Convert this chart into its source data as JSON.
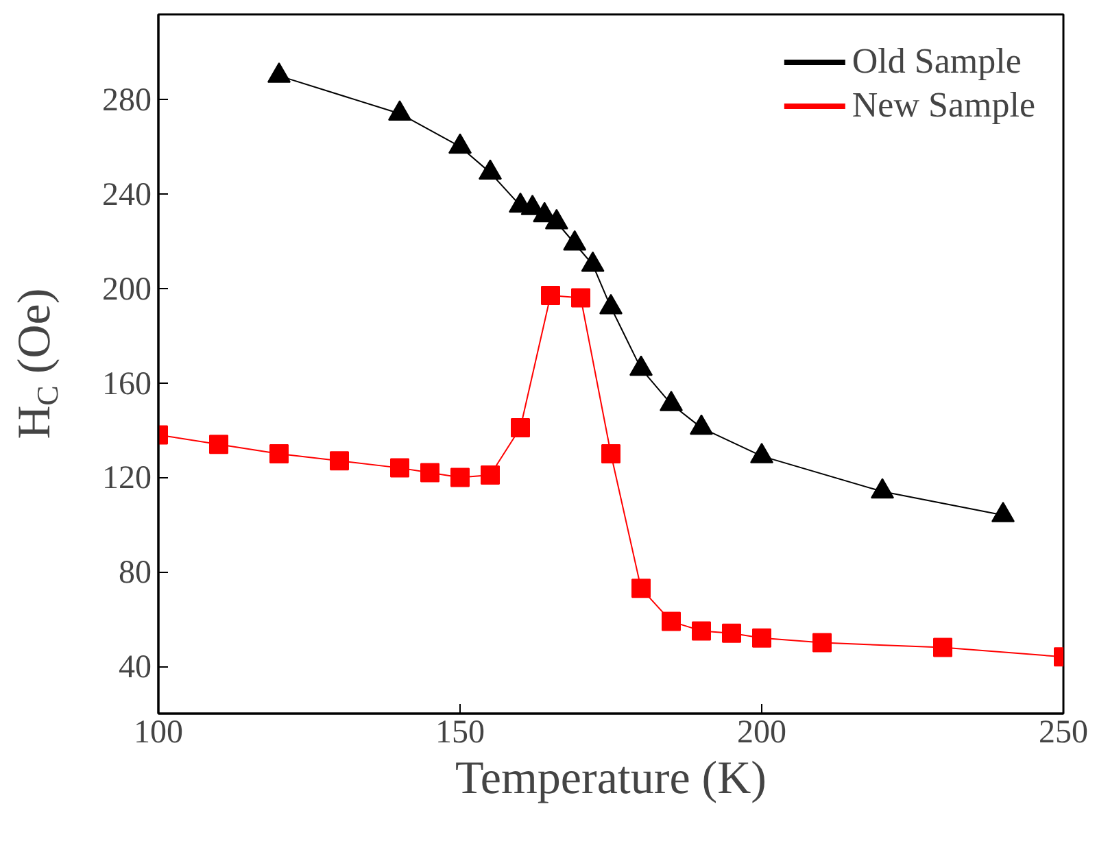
{
  "chart_data": {
    "type": "line",
    "xlabel": "Temperature (K)",
    "ylabel": "H$_{C}$ (Oe)",
    "xlim": [
      100,
      250
    ],
    "ylim": [
      20,
      316
    ],
    "xticks": [
      100,
      150,
      200,
      250
    ],
    "yticks": [
      40,
      80,
      120,
      160,
      200,
      240,
      280
    ],
    "grid": false,
    "legend": "top right",
    "line_style": "solid",
    "series": [
      {
        "name": "Old Sample",
        "color": "#000000",
        "marker": "triangle",
        "x": [
          120,
          140,
          150,
          155,
          160,
          162,
          164,
          166,
          169,
          172,
          175,
          180,
          185,
          190,
          200,
          220,
          240
        ],
        "values": [
          290,
          274,
          260,
          249,
          235,
          234,
          231,
          228,
          219,
          210,
          192,
          166,
          151,
          141,
          129,
          114,
          104
        ]
      },
      {
        "name": "New Sample",
        "color": "#ff0000",
        "marker": "square",
        "x": [
          100,
          110,
          120,
          130,
          140,
          145,
          150,
          155,
          160,
          165,
          170,
          175,
          180,
          185,
          190,
          195,
          200,
          210,
          230,
          250
        ],
        "values": [
          138,
          134,
          130,
          127,
          124,
          122,
          120,
          121,
          141,
          197,
          196,
          130,
          73,
          59,
          55,
          54,
          52,
          50,
          48,
          44
        ]
      }
    ]
  }
}
